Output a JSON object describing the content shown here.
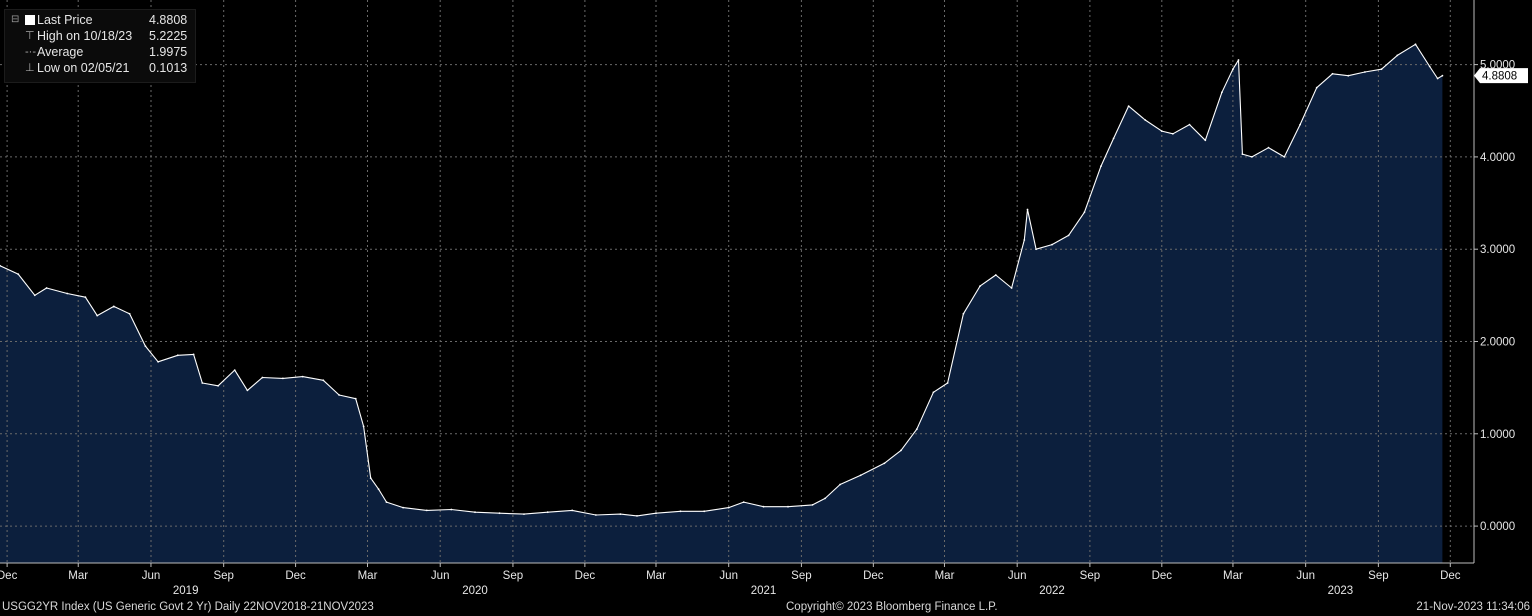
{
  "legend": {
    "last_price_label": "Last Price",
    "last_price_value": "4.8808",
    "high_label": "High on 10/18/23",
    "high_value": "5.2225",
    "average_label": "Average",
    "average_value": "1.9975",
    "low_label": "Low on 02/05/21",
    "low_value": "0.1013"
  },
  "footer": {
    "left": "USGG2YR Index (US Generic Govt 2 Yr)  Daily 22NOV2018-21NOV2023",
    "center": "Copyright© 2023 Bloomberg Finance L.P.",
    "right": "21-Nov-2023 11:34:06"
  },
  "colors": {
    "background": "#000000",
    "area_fill": "#0c1f3d",
    "line": "#ffffff",
    "grid": "#6a6a6a",
    "last_price_tag_bg": "#ffffff",
    "last_price_tag_text": "#000000"
  },
  "chart_data": {
    "type": "area",
    "series": [
      {
        "name": "Last Price",
        "x": [
          "2018-11-22",
          "2018-12-15",
          "2019-01-05",
          "2019-01-20",
          "2019-02-15",
          "2019-03-10",
          "2019-03-25",
          "2019-04-15",
          "2019-05-05",
          "2019-05-25",
          "2019-06-10",
          "2019-07-05",
          "2019-07-25",
          "2019-08-05",
          "2019-08-25",
          "2019-09-15",
          "2019-10-01",
          "2019-10-20",
          "2019-11-15",
          "2019-12-10",
          "2020-01-05",
          "2020-01-25",
          "2020-02-15",
          "2020-02-25",
          "2020-03-05",
          "2020-03-15",
          "2020-03-25",
          "2020-04-15",
          "2020-05-15",
          "2020-06-15",
          "2020-07-15",
          "2020-08-15",
          "2020-09-15",
          "2020-10-15",
          "2020-11-15",
          "2020-12-15",
          "2021-01-15",
          "2021-02-05",
          "2021-03-01",
          "2021-04-01",
          "2021-05-01",
          "2021-06-01",
          "2021-06-20",
          "2021-07-15",
          "2021-08-15",
          "2021-09-15",
          "2021-10-01",
          "2021-10-20",
          "2021-11-15",
          "2021-12-15",
          "2022-01-05",
          "2022-01-25",
          "2022-02-15",
          "2022-03-05",
          "2022-03-25",
          "2022-04-15",
          "2022-05-05",
          "2022-05-25",
          "2022-06-10",
          "2022-06-14",
          "2022-06-25",
          "2022-07-15",
          "2022-08-05",
          "2022-08-25",
          "2022-09-15",
          "2022-10-01",
          "2022-10-20",
          "2022-11-10",
          "2022-12-01",
          "2022-12-15",
          "2023-01-05",
          "2023-01-25",
          "2023-02-15",
          "2023-03-01",
          "2023-03-08",
          "2023-03-13",
          "2023-03-25",
          "2023-04-15",
          "2023-05-05",
          "2023-05-25",
          "2023-06-15",
          "2023-07-05",
          "2023-07-25",
          "2023-08-15",
          "2023-09-05",
          "2023-09-25",
          "2023-10-18",
          "2023-11-05",
          "2023-11-15",
          "2023-11-21"
        ],
        "values": [
          2.82,
          2.73,
          2.5,
          2.58,
          2.52,
          2.48,
          2.28,
          2.38,
          2.3,
          1.95,
          1.78,
          1.85,
          1.86,
          1.55,
          1.52,
          1.69,
          1.47,
          1.61,
          1.6,
          1.62,
          1.58,
          1.42,
          1.38,
          1.08,
          0.52,
          0.4,
          0.26,
          0.2,
          0.17,
          0.18,
          0.15,
          0.14,
          0.13,
          0.15,
          0.17,
          0.12,
          0.13,
          0.11,
          0.14,
          0.16,
          0.16,
          0.2,
          0.26,
          0.21,
          0.21,
          0.23,
          0.3,
          0.45,
          0.55,
          0.68,
          0.82,
          1.05,
          1.45,
          1.55,
          2.3,
          2.6,
          2.72,
          2.58,
          3.1,
          3.43,
          3.0,
          3.05,
          3.15,
          3.4,
          3.9,
          4.2,
          4.55,
          4.4,
          4.28,
          4.25,
          4.35,
          4.18,
          4.7,
          4.95,
          5.05,
          4.03,
          4.0,
          4.1,
          4.0,
          4.35,
          4.75,
          4.9,
          4.88,
          4.92,
          4.95,
          5.1,
          5.22,
          4.98,
          4.85,
          4.88
        ]
      }
    ],
    "y_ticks": [
      "0.0000",
      "1.0000",
      "2.0000",
      "3.0000",
      "4.0000",
      "5.0000"
    ],
    "ylim": [
      -0.4,
      5.7
    ],
    "xlim": [
      "2018-11-22",
      "2023-12-31"
    ],
    "month_ticks": [
      {
        "date": "2018-12-01",
        "label": "Dec"
      },
      {
        "date": "2019-03-01",
        "label": "Mar"
      },
      {
        "date": "2019-06-01",
        "label": "Jun"
      },
      {
        "date": "2019-09-01",
        "label": "Sep"
      },
      {
        "date": "2019-12-01",
        "label": "Dec"
      },
      {
        "date": "2020-03-01",
        "label": "Mar"
      },
      {
        "date": "2020-06-01",
        "label": "Jun"
      },
      {
        "date": "2020-09-01",
        "label": "Sep"
      },
      {
        "date": "2020-12-01",
        "label": "Dec"
      },
      {
        "date": "2021-03-01",
        "label": "Mar"
      },
      {
        "date": "2021-06-01",
        "label": "Jun"
      },
      {
        "date": "2021-09-01",
        "label": "Sep"
      },
      {
        "date": "2021-12-01",
        "label": "Dec"
      },
      {
        "date": "2022-03-01",
        "label": "Mar"
      },
      {
        "date": "2022-06-01",
        "label": "Jun"
      },
      {
        "date": "2022-09-01",
        "label": "Sep"
      },
      {
        "date": "2022-12-01",
        "label": "Dec"
      },
      {
        "date": "2023-03-01",
        "label": "Mar"
      },
      {
        "date": "2023-06-01",
        "label": "Jun"
      },
      {
        "date": "2023-09-01",
        "label": "Sep"
      },
      {
        "date": "2023-12-01",
        "label": "Dec"
      }
    ],
    "year_labels": [
      {
        "date": "2019-07-15",
        "label": "2019"
      },
      {
        "date": "2020-07-15",
        "label": "2020"
      },
      {
        "date": "2021-07-15",
        "label": "2021"
      },
      {
        "date": "2022-07-15",
        "label": "2022"
      },
      {
        "date": "2023-07-15",
        "label": "2023"
      }
    ],
    "last_price_tag": "4.8808",
    "grid": true,
    "legend_position": "top-left"
  }
}
